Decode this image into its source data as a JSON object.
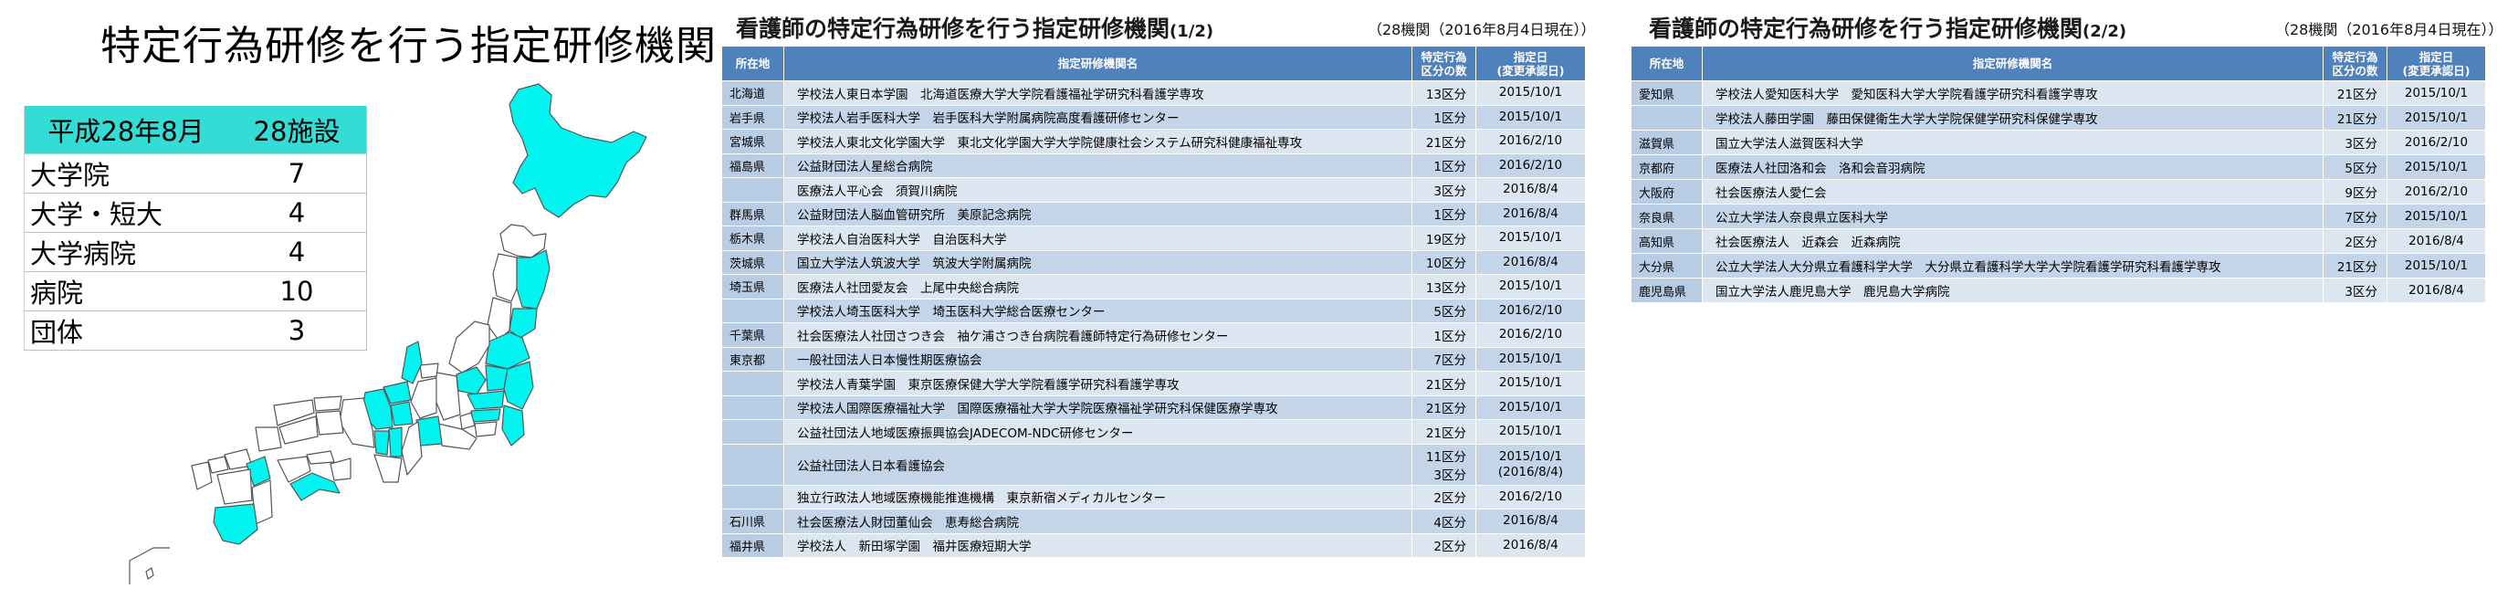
{
  "panel1": {
    "title": "特定行為研修を行う指定研修機関",
    "summary": {
      "header": [
        "平成28年8月",
        "28施設"
      ],
      "rows": [
        {
          "label": "大学院",
          "value": "7"
        },
        {
          "label": "大学・短大",
          "value": "4"
        },
        {
          "label": "大学病院",
          "value": "4"
        },
        {
          "label": "病院",
          "value": "10"
        },
        {
          "label": "団体",
          "value": "3"
        }
      ]
    },
    "map": {
      "highlight_color": "#00f5f0",
      "base_color": "#ffffff"
    }
  },
  "panel2": {
    "title": "看護師の特定行為研修を行う指定研修機関",
    "page": "(1/2)",
    "note": "（28機関（2016年8月4日現在））",
    "headers": [
      "所在地",
      "指定研修機関名",
      "特定行為\n区分の数",
      "指定日\n(変更承認日)"
    ],
    "rows": [
      {
        "pref": "北海道",
        "name": "学校法人東日本学園　北海道医療大学大学院看護福祉学研究科看護学専攻",
        "count": "13区分",
        "date": "2015/10/1"
      },
      {
        "pref": "岩手県",
        "name": "学校法人岩手医科大学　岩手医科大学附属病院高度看護研修センター",
        "count": "1区分",
        "date": "2015/10/1"
      },
      {
        "pref": "宮城県",
        "name": "学校法人東北文化学園大学　東北文化学園大学大学院健康社会システム研究科健康福祉専攻",
        "count": "21区分",
        "date": "2016/2/10"
      },
      {
        "pref": "福島県",
        "name": "公益財団法人星総合病院",
        "count": "1区分",
        "date": "2016/2/10"
      },
      {
        "pref": "",
        "name": "医療法人平心会　須賀川病院",
        "count": "3区分",
        "date": "2016/8/4"
      },
      {
        "pref": "群馬県",
        "name": "公益財団法人脳血管研究所　美原記念病院",
        "count": "1区分",
        "date": "2016/8/4"
      },
      {
        "pref": "栃木県",
        "name": "学校法人自治医科大学　自治医科大学",
        "count": "19区分",
        "date": "2015/10/1"
      },
      {
        "pref": "茨城県",
        "name": "国立大学法人筑波大学　筑波大学附属病院",
        "count": "10区分",
        "date": "2016/8/4"
      },
      {
        "pref": "埼玉県",
        "name": "医療法人社団愛友会　上尾中央総合病院",
        "count": "13区分",
        "date": "2015/10/1"
      },
      {
        "pref": "",
        "name": "学校法人埼玉医科大学　埼玉医科大学総合医療センター",
        "count": "5区分",
        "date": "2016/2/10"
      },
      {
        "pref": "千葉県",
        "name": "社会医療法人社団さつき会　袖ケ浦さつき台病院看護師特定行為研修センター",
        "count": "1区分",
        "date": "2016/2/10"
      },
      {
        "pref": "東京都",
        "name": "一般社団法人日本慢性期医療協会",
        "count": "7区分",
        "date": "2015/10/1"
      },
      {
        "pref": "",
        "name": "学校法人青葉学園　東京医療保健大学大学院看護学研究科看護学専攻",
        "count": "21区分",
        "date": "2015/10/1"
      },
      {
        "pref": "",
        "name": "学校法人国際医療福祉大学　国際医療福祉大学大学院医療福祉学研究科保健医療学専攻",
        "count": "21区分",
        "date": "2015/10/1"
      },
      {
        "pref": "",
        "name": "公益社団法人地域医療振興協会JADECOM-NDC研修センター",
        "count": "21区分",
        "date": "2015/10/1"
      },
      {
        "pref": "",
        "name": "公益社団法人日本看護協会",
        "count": "11区分\n3区分",
        "date": "2015/10/1\n(2016/8/4)"
      },
      {
        "pref": "",
        "name": "独立行政法人地域医療機能推進機構　東京新宿メディカルセンター",
        "count": "2区分",
        "date": "2016/2/10"
      },
      {
        "pref": "石川県",
        "name": "社会医療法人財団董仙会　恵寿総合病院",
        "count": "4区分",
        "date": "2016/8/4"
      },
      {
        "pref": "福井県",
        "name": "学校法人　新田塚学園　福井医療短期大学",
        "count": "2区分",
        "date": "2016/8/4"
      }
    ]
  },
  "panel3": {
    "title": "看護師の特定行為研修を行う指定研修機関",
    "page": "(2/2)",
    "note": "（28機関（2016年8月4日現在））",
    "headers": [
      "所在地",
      "指定研修機関名",
      "特定行為\n区分の数",
      "指定日\n(変更承認日)"
    ],
    "rows": [
      {
        "pref": "愛知県",
        "name": "学校法人愛知医科大学　愛知医科大学大学院看護学研究科看護学専攻",
        "count": "21区分",
        "date": "2015/10/1"
      },
      {
        "pref": "",
        "name": "学校法人藤田学園　藤田保健衛生大学大学院保健学研究科保健学専攻",
        "count": "21区分",
        "date": "2015/10/1"
      },
      {
        "pref": "滋賀県",
        "name": "国立大学法人滋賀医科大学",
        "count": "3区分",
        "date": "2016/2/10"
      },
      {
        "pref": "京都府",
        "name": "医療法人社団洛和会　洛和会音羽病院",
        "count": "5区分",
        "date": "2015/10/1"
      },
      {
        "pref": "大阪府",
        "name": "社会医療法人愛仁会",
        "count": "9区分",
        "date": "2016/2/10"
      },
      {
        "pref": "奈良県",
        "name": "公立大学法人奈良県立医科大学",
        "count": "7区分",
        "date": "2015/10/1"
      },
      {
        "pref": "高知県",
        "name": "社会医療法人　近森会　近森病院",
        "count": "2区分",
        "date": "2016/8/4"
      },
      {
        "pref": "大分県",
        "name": "公立大学法人大分県立看護科学大学　大分県立看護科学大学大学院看護学研究科看護学専攻",
        "count": "21区分",
        "date": "2015/10/1"
      },
      {
        "pref": "鹿児島県",
        "name": "国立大学法人鹿児島大学　鹿児島大学病院",
        "count": "3区分",
        "date": "2016/8/4"
      }
    ]
  }
}
